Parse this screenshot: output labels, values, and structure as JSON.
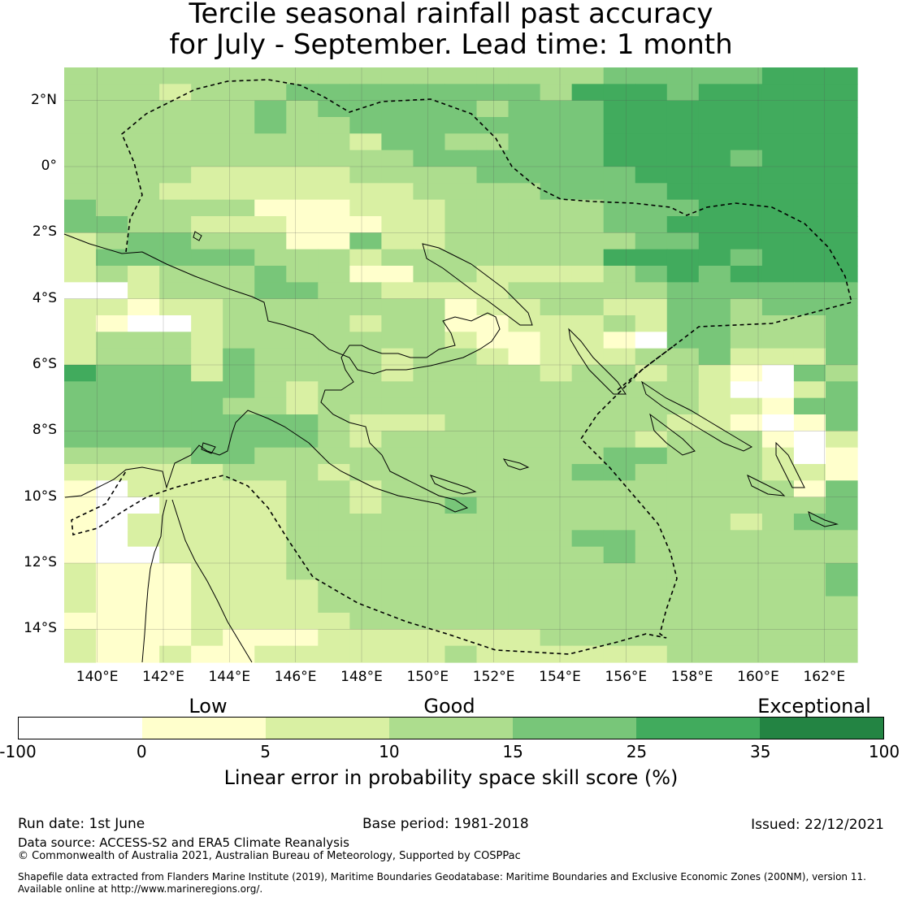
{
  "title_line1": "Tercile seasonal rainfall past accuracy",
  "title_line2": "for July - September. Lead time: 1 month",
  "map": {
    "lon_range": [
      139,
      163
    ],
    "lat_range": [
      -15,
      3
    ],
    "lat_labels": [
      {
        "value": 2,
        "text": "2°N"
      },
      {
        "value": 0,
        "text": "0°"
      },
      {
        "value": -2,
        "text": "2°S"
      },
      {
        "value": -4,
        "text": "4°S"
      },
      {
        "value": -6,
        "text": "6°S"
      },
      {
        "value": -8,
        "text": "8°S"
      },
      {
        "value": -10,
        "text": "10°S"
      },
      {
        "value": -12,
        "text": "12°S"
      },
      {
        "value": -14,
        "text": "14°S"
      }
    ],
    "lon_labels": [
      {
        "value": 140,
        "text": "140°E"
      },
      {
        "value": 142,
        "text": "142°E"
      },
      {
        "value": 144,
        "text": "144°E"
      },
      {
        "value": 146,
        "text": "146°E"
      },
      {
        "value": 148,
        "text": "148°E"
      },
      {
        "value": 150,
        "text": "150°E"
      },
      {
        "value": 152,
        "text": "152°E"
      },
      {
        "value": 154,
        "text": "154°E"
      },
      {
        "value": 156,
        "text": "156°E"
      },
      {
        "value": 158,
        "text": "158°E"
      },
      {
        "value": 160,
        "text": "160°E"
      },
      {
        "value": 162,
        "text": "162°E"
      }
    ],
    "skill_grid_rows": [
      "3333333333333333344444555",
      "3332333444444443555455555",
      "3333334344444344455555555",
      "3333334334444444455555555",
      "3333333332443344455555555",
      "3333333333344444455554555",
      "3333222223333444445555555",
      "3332222222233334444555555",
      "4333331112223333344455555",
      "4433222111223333344555555",
      "2344333114223333334455555",
      "2444443332333333355554555",
      "2323334331133222234545555",
      "0023334433222233333444444",
      "2212233333331223322443444",
      "2100233332331122232443334",
      "2333233333332112210443334",
      "2333243333233212223342224",
      "5444243333233332332321043",
      "4444443233333333333320024",
      "4444433233333333333322144",
      "4444444432223333333221014",
      "4444444432333333332333102",
      "3333443333333333344333201",
      "2222233323333333443333221",
      "1022222332333333333333314",
      "1002222332334333333333334",
      "1022222333333333333332344",
      "1022222333333333443333333",
      "1002222333333333343333333",
      "2111222333333333333333334",
      "2111222233333333333333334",
      "2111222233333333333333333",
      "1111222223333333333333333",
      "2111211122222223333333333",
      "2112112222223222222333333"
    ],
    "colors": [
      "#ffffff",
      "#ffffcc",
      "#d9f0a3",
      "#addd8e",
      "#78c679",
      "#41ab5d",
      "#238443"
    ]
  },
  "categories": {
    "low": "Low",
    "good": "Good",
    "exceptional": "Exceptional"
  },
  "colorbar": {
    "ticks": [
      "-100",
      "0",
      "5",
      "10",
      "15",
      "25",
      "35",
      "100"
    ],
    "title": "Linear error in probability space skill score (%)"
  },
  "footer": {
    "run_date": "Run date: 1st June",
    "base_period": "Base period: 1981-2018",
    "issued": "Issued: 22/12/2021",
    "data_source": "Data source: ACCESS-S2 and ERA5 Climate Reanalysis",
    "copyright": "© Commonwealth of Australia 2021, Australian Bureau of Meteorology, Supported by COSPPac",
    "shapefile_line1": "Shapefile data extracted from Flanders Marine Institute (2019), Maritime Boundaries Geodatabase: Maritime Boundaries and Exclusive Economic Zones (200NM), version 11.",
    "shapefile_line2": "Available online at http://www.marineregions.org/."
  }
}
